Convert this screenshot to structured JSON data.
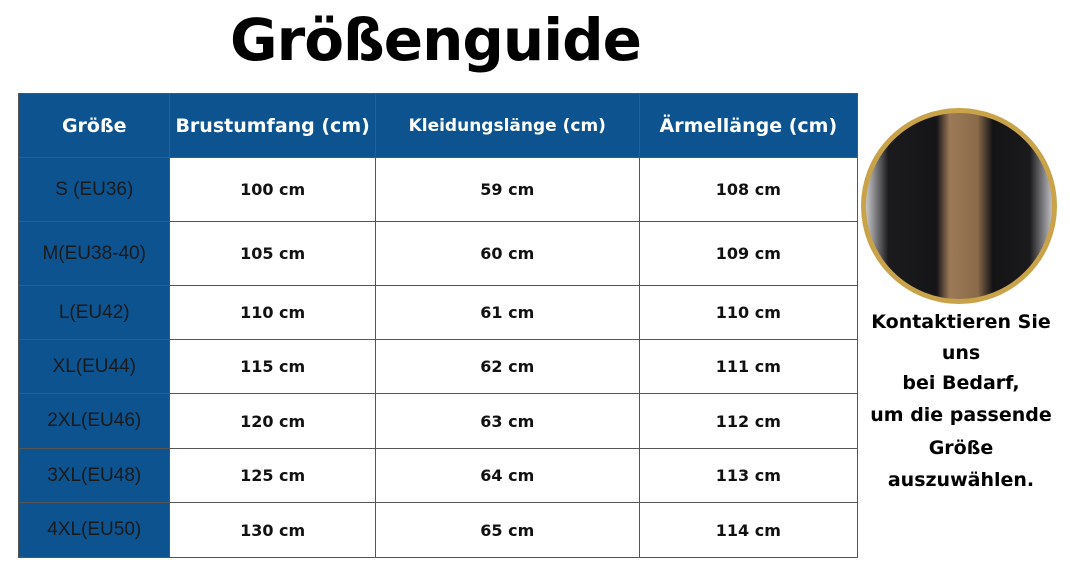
{
  "title": "Größenguide",
  "table": {
    "headers": [
      "Größe",
      "Brustumfang (cm)",
      "Kleidungslänge (cm)",
      "Ärmellänge (cm)"
    ],
    "rows": [
      [
        "S (EU36)",
        "100 cm",
        "59 cm",
        "108 cm"
      ],
      [
        "M(EU38-40)",
        "105 cm",
        "60 cm",
        "109 cm"
      ],
      [
        "L(EU42)",
        "110 cm",
        "61 cm",
        "110 cm"
      ],
      [
        "XL(EU44)",
        "115 cm",
        "62 cm",
        "111 cm"
      ],
      [
        "2XL(EU46)",
        "120 cm",
        "63 cm",
        "112 cm"
      ],
      [
        "3XL(EU48)",
        "125 cm",
        "64 cm",
        "113 cm"
      ],
      [
        "4XL(EU50)",
        "130 cm",
        "65 cm",
        "114 cm"
      ]
    ]
  },
  "contact_lines": [
    "Kontaktieren Sie",
    "uns",
    "bei Bedarf,",
    "um die passende",
    "Größe",
    "auszuwählen."
  ],
  "colors": {
    "header_blue": "#0d5390",
    "photo_border": "#c9a34a"
  }
}
